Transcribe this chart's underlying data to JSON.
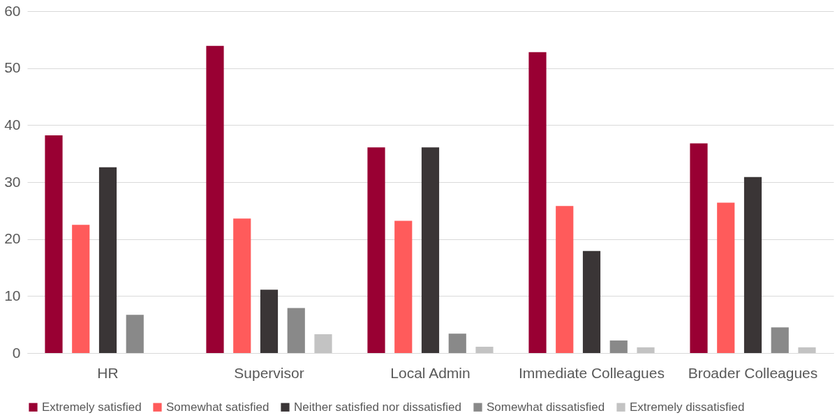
{
  "chart_data": {
    "type": "bar",
    "categories": [
      "HR",
      "Supervisor",
      "Local Admin",
      "Immediate Colleagues",
      "Broader Colleagues"
    ],
    "series": [
      {
        "name": "Extremely satisfied",
        "color": "#990033",
        "values": [
          38.2,
          53.9,
          36.1,
          52.8,
          36.8
        ]
      },
      {
        "name": "Somewhat satisfied",
        "color": "#ff5b5b",
        "values": [
          22.5,
          23.6,
          23.2,
          25.8,
          26.4
        ]
      },
      {
        "name": "Neither satisfied nor dissatisfied",
        "color": "#3a3536",
        "values": [
          32.6,
          11.1,
          36.1,
          17.9,
          30.9
        ]
      },
      {
        "name": "Somewhat dissatisfied",
        "color": "#898989",
        "values": [
          6.7,
          7.9,
          3.4,
          2.2,
          4.5
        ]
      },
      {
        "name": "Extremely dissatisfied",
        "color": "#c3c3c3",
        "values": [
          null,
          3.3,
          1.1,
          1.0,
          1.0
        ]
      }
    ],
    "ylim": [
      0,
      60
    ],
    "yticks": [
      0,
      10,
      20,
      30,
      40,
      50,
      60
    ],
    "grid": "y",
    "legend": "bottom"
  }
}
